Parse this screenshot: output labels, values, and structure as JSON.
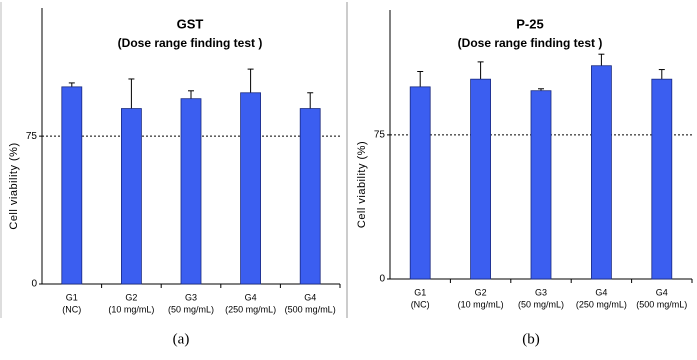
{
  "chart_data": [
    {
      "type": "bar",
      "title": "GST",
      "subtitle": "(Dose range finding test )",
      "ylabel": "Cell viability (%)",
      "caption": "(a)",
      "categories": [
        [
          "G1",
          "(NC)"
        ],
        [
          "G2",
          "(10 mg/mL)"
        ],
        [
          "G3",
          "(50 mg/mL)"
        ],
        [
          "G4",
          "(250 mg/mL)"
        ],
        [
          "G4",
          "(500 mg/mL)"
        ]
      ],
      "values": [
        100,
        89,
        94,
        97,
        89
      ],
      "errors": [
        2,
        15,
        4,
        12,
        8
      ],
      "color": "#3b5ef0",
      "ylim": [
        0,
        140
      ],
      "yticks": [
        0,
        75
      ],
      "hline": 75
    },
    {
      "type": "bar",
      "title": "P-25",
      "subtitle": "(Dose range finding test )",
      "ylabel": "Cell viability (%)",
      "caption": "(b)",
      "categories": [
        [
          "G1",
          "(NC)"
        ],
        [
          "G2",
          "(10 mg/mL)"
        ],
        [
          "G3",
          "(50 mg/mL)"
        ],
        [
          "G4",
          "(250 mg/mL)"
        ],
        [
          "G4",
          "(500 mg/mL)"
        ]
      ],
      "values": [
        100,
        104,
        98,
        111,
        104
      ],
      "errors": [
        8,
        9,
        1,
        6,
        5
      ],
      "color": "#3b5ef0",
      "ylim": [
        0,
        140
      ],
      "yticks": [
        0,
        75
      ],
      "hline": 75
    }
  ]
}
